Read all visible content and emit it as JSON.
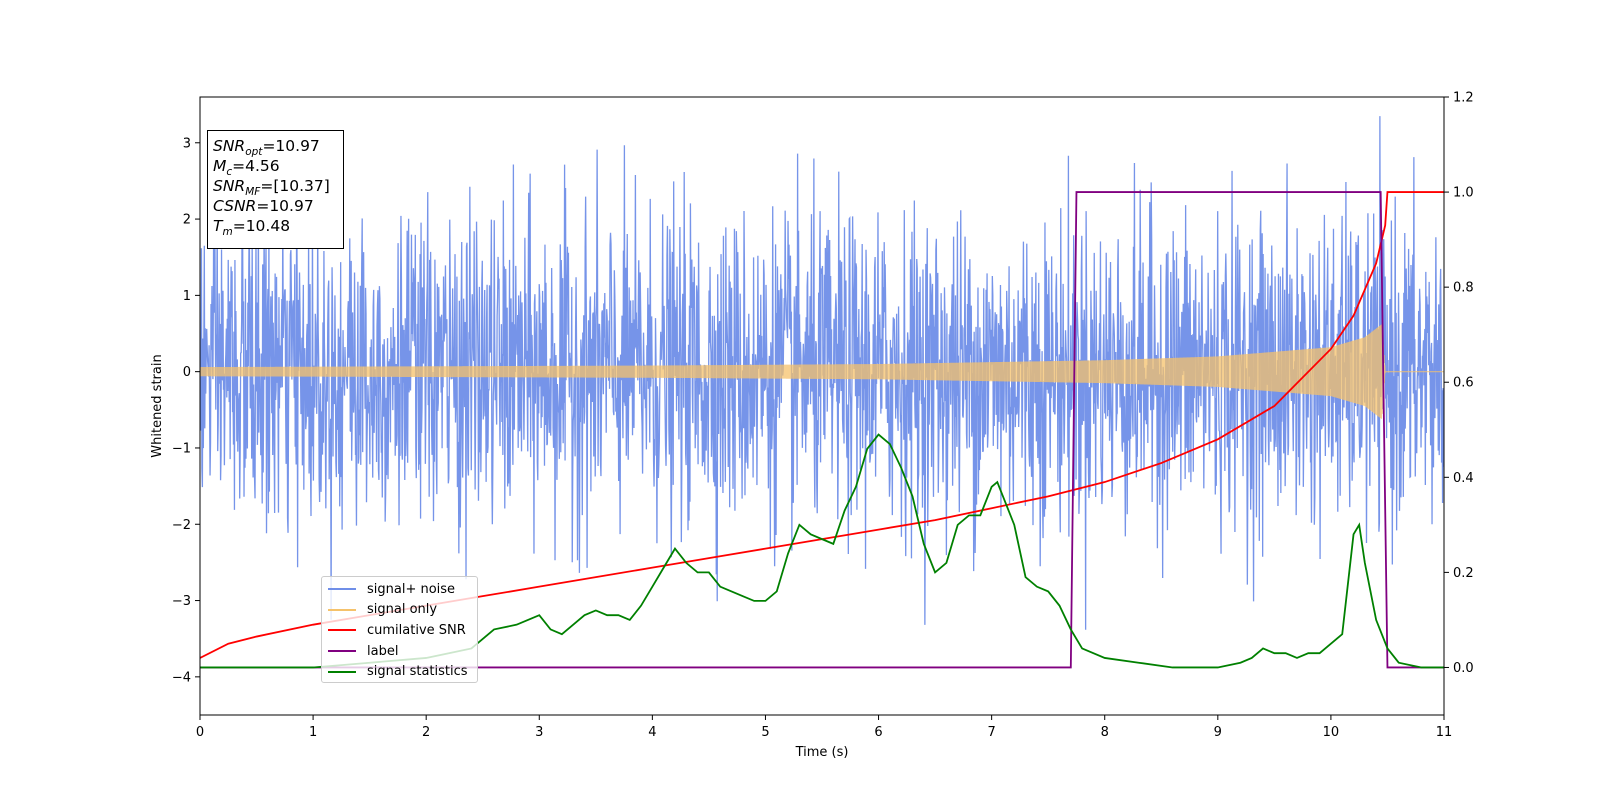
{
  "chart_data": {
    "type": "line",
    "xlabel": "Time (s)",
    "ylabel": "Whitened strain",
    "xlim": [
      0,
      11
    ],
    "ylim": [
      -4.5,
      3.6
    ],
    "y2lim": [
      -0.1,
      1.2
    ],
    "x_ticks": [
      "0",
      "1",
      "2",
      "3",
      "4",
      "5",
      "6",
      "7",
      "8",
      "9",
      "10",
      "11"
    ],
    "y_ticks": [
      "3",
      "2",
      "1",
      "0",
      "−1",
      "−2",
      "−3",
      "−4"
    ],
    "y2_ticks": [
      "1.2",
      "1.0",
      "0.8",
      "0.6",
      "0.4",
      "0.2",
      "0.0"
    ],
    "grid": false,
    "legend_placement": "lower-left",
    "annotation": {
      "snr_opt": {
        "symbol": "SNR",
        "sub": "opt",
        "value": "=10.97"
      },
      "mc": {
        "symbol": "M",
        "sub": "c",
        "value": "=4.56"
      },
      "snr_mf": {
        "symbol": "SNR",
        "sub": "MF",
        "value": "=[10.37]"
      },
      "csnr": {
        "symbol": "CSNR",
        "value": "=10.97"
      },
      "tm": {
        "symbol": "T",
        "sub": "m",
        "value": "=10.48"
      }
    },
    "series": [
      {
        "name": "signal+ noise",
        "color": "#6f8ee8",
        "axis": "left",
        "description_of_values": "white noise, approx. uniform spread between -2.5 and 2.5 with peaks to about 3.4 and -4.2",
        "noise_std": 1.0
      },
      {
        "name": "signal only",
        "color": "#f5c26b",
        "axis": "left",
        "envelope": {
          "x": [
            0,
            2,
            4,
            6,
            8,
            9,
            10,
            10.3,
            10.45,
            10.48,
            11
          ],
          "amplitude": [
            0.06,
            0.07,
            0.08,
            0.1,
            0.15,
            0.2,
            0.32,
            0.45,
            0.62,
            0,
            0
          ]
        }
      },
      {
        "name": "cumilative SNR",
        "color": "#ff0000",
        "axis": "right",
        "x": [
          0,
          0.25,
          0.5,
          1,
          1.5,
          2,
          2.5,
          3,
          3.5,
          4,
          4.5,
          5,
          5.5,
          6,
          6.5,
          7,
          7.5,
          8,
          8.5,
          9,
          9.5,
          10,
          10.2,
          10.4,
          10.48,
          10.5,
          11
        ],
        "values": [
          0.02,
          0.05,
          0.065,
          0.09,
          0.11,
          0.13,
          0.15,
          0.17,
          0.19,
          0.21,
          0.23,
          0.25,
          0.27,
          0.29,
          0.31,
          0.335,
          0.36,
          0.39,
          0.43,
          0.48,
          0.55,
          0.67,
          0.74,
          0.85,
          0.93,
          1.0,
          1.0
        ]
      },
      {
        "name": "label",
        "color": "#800080",
        "axis": "right",
        "x": [
          0,
          7.7,
          7.75,
          10.44,
          10.5,
          11
        ],
        "values": [
          0,
          0,
          1,
          1,
          0,
          0
        ]
      },
      {
        "name": "signal statistics",
        "color": "#008000",
        "axis": "right",
        "x": [
          0,
          0.5,
          1,
          1.5,
          2,
          2.2,
          2.4,
          2.5,
          2.6,
          2.8,
          2.9,
          3,
          3.1,
          3.2,
          3.3,
          3.4,
          3.5,
          3.6,
          3.7,
          3.8,
          3.9,
          4,
          4.1,
          4.2,
          4.3,
          4.4,
          4.5,
          4.6,
          4.7,
          4.8,
          4.9,
          5,
          5.1,
          5.2,
          5.3,
          5.4,
          5.5,
          5.6,
          5.7,
          5.8,
          5.9,
          6,
          6.1,
          6.2,
          6.3,
          6.4,
          6.5,
          6.6,
          6.7,
          6.8,
          6.9,
          7,
          7.05,
          7.1,
          7.2,
          7.3,
          7.4,
          7.5,
          7.6,
          7.7,
          7.8,
          8,
          8.3,
          8.6,
          9,
          9.2,
          9.3,
          9.4,
          9.5,
          9.6,
          9.7,
          9.8,
          9.9,
          10,
          10.1,
          10.2,
          10.25,
          10.3,
          10.4,
          10.5,
          10.6,
          10.8,
          11
        ],
        "values": [
          0.0,
          0.0,
          0.0,
          0.01,
          0.02,
          0.03,
          0.04,
          0.06,
          0.08,
          0.09,
          0.1,
          0.11,
          0.08,
          0.07,
          0.09,
          0.11,
          0.12,
          0.11,
          0.11,
          0.1,
          0.13,
          0.17,
          0.21,
          0.25,
          0.22,
          0.2,
          0.2,
          0.17,
          0.16,
          0.15,
          0.14,
          0.14,
          0.16,
          0.24,
          0.3,
          0.28,
          0.27,
          0.26,
          0.33,
          0.38,
          0.46,
          0.49,
          0.47,
          0.42,
          0.36,
          0.26,
          0.2,
          0.22,
          0.3,
          0.32,
          0.32,
          0.38,
          0.39,
          0.36,
          0.3,
          0.19,
          0.17,
          0.16,
          0.13,
          0.08,
          0.04,
          0.02,
          0.01,
          0.0,
          0.0,
          0.01,
          0.02,
          0.04,
          0.03,
          0.03,
          0.02,
          0.03,
          0.03,
          0.05,
          0.07,
          0.28,
          0.3,
          0.22,
          0.1,
          0.04,
          0.01,
          0.0,
          0.0
        ]
      }
    ]
  }
}
